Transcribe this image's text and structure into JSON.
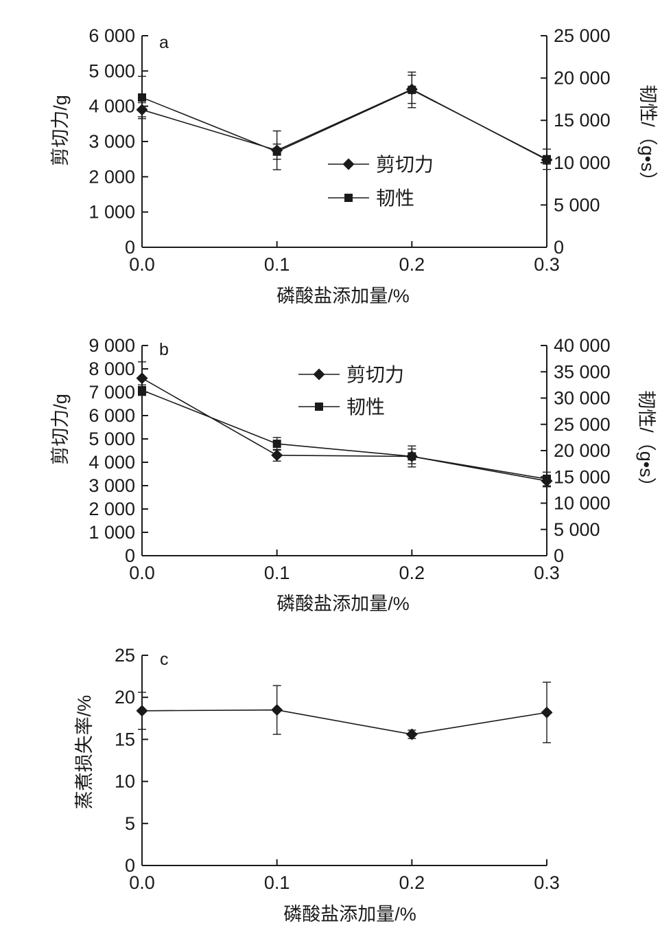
{
  "chart_data": [
    {
      "type": "line",
      "panel_letter": "a",
      "xlabel": "磷酸盐添加量/%",
      "ylabel_left": "剪切力/g",
      "ylabel_right": "韧性/（g•s）",
      "x": [
        0.0,
        0.1,
        0.2,
        0.3
      ],
      "x_tick_labels": [
        "0.0",
        "0.1",
        "0.2",
        "0.3"
      ],
      "xlim": [
        0,
        0.3
      ],
      "ylim_left": [
        0,
        6000
      ],
      "yticks_left": [
        0,
        1000,
        2000,
        3000,
        4000,
        5000,
        6000
      ],
      "ytick_labels_left": [
        "0",
        "1 000",
        "2 000",
        "3 000",
        "4 000",
        "5 000",
        "6 000"
      ],
      "ylim_right": [
        0,
        25000
      ],
      "yticks_right": [
        0,
        5000,
        10000,
        15000,
        20000,
        25000
      ],
      "ytick_labels_right": [
        "0",
        "5 000",
        "10 000",
        "15 000",
        "20 000",
        "25 000"
      ],
      "legend_position": "center",
      "series": [
        {
          "name": "剪切力",
          "marker": "diamond",
          "axis": "left",
          "values": [
            3900,
            2750,
            4480,
            2480
          ],
          "errors": [
            200,
            550,
            400,
            120
          ]
        },
        {
          "name": "韧性",
          "marker": "square",
          "axis": "right",
          "values": [
            17700,
            11300,
            18600,
            10400
          ],
          "errors": [
            2500,
            900,
            2100,
            1200
          ]
        }
      ]
    },
    {
      "type": "line",
      "panel_letter": "b",
      "xlabel": "磷酸盐添加量/%",
      "ylabel_left": "剪切力/g",
      "ylabel_right": "韧性/（g•s）",
      "x": [
        0.0,
        0.1,
        0.2,
        0.3
      ],
      "x_tick_labels": [
        "0.0",
        "0.1",
        "0.2",
        "0.3"
      ],
      "xlim": [
        0,
        0.3
      ],
      "ylim_left": [
        0,
        9000
      ],
      "yticks_left": [
        0,
        1000,
        2000,
        3000,
        4000,
        5000,
        6000,
        7000,
        8000,
        9000
      ],
      "ytick_labels_left": [
        "0",
        "1 000",
        "2 000",
        "3 000",
        "4 000",
        "5 000",
        "6 000",
        "7 000",
        "8 000",
        "9 000"
      ],
      "ylim_right": [
        0,
        40000
      ],
      "yticks_right": [
        0,
        5000,
        10000,
        15000,
        20000,
        25000,
        30000,
        35000,
        40000
      ],
      "ytick_labels_right": [
        "0",
        "5 000",
        "10 000",
        "15 000",
        "20 000",
        "25 000",
        "30 000",
        "35 000",
        "40 000"
      ],
      "legend_position": "top-center",
      "series": [
        {
          "name": "剪切力",
          "marker": "diamond",
          "axis": "left",
          "values": [
            7600,
            4300,
            4250,
            3200
          ],
          "errors": [
            700,
            250,
            450,
            250
          ]
        },
        {
          "name": "韧性",
          "marker": "square",
          "axis": "right",
          "values": [
            31500,
            21300,
            18900,
            14600
          ],
          "errors": [
            1000,
            1200,
            1400,
            1300
          ]
        }
      ]
    },
    {
      "type": "line",
      "panel_letter": "c",
      "xlabel": "磷酸盐添加量/%",
      "ylabel_left": "蒸煮损失率/%",
      "x": [
        0.0,
        0.1,
        0.2,
        0.3
      ],
      "x_tick_labels": [
        "0.0",
        "0.1",
        "0.2",
        "0.3"
      ],
      "xlim": [
        0,
        0.3
      ],
      "ylim_left": [
        0,
        25
      ],
      "yticks_left": [
        0,
        5,
        10,
        15,
        20,
        25
      ],
      "ytick_labels_left": [
        "0",
        "5",
        "10",
        "15",
        "20",
        "25"
      ],
      "series": [
        {
          "name": "",
          "marker": "diamond",
          "axis": "left",
          "values": [
            18.4,
            18.5,
            15.6,
            18.2
          ],
          "errors": [
            2.2,
            2.9,
            0.5,
            3.6
          ]
        }
      ]
    }
  ]
}
